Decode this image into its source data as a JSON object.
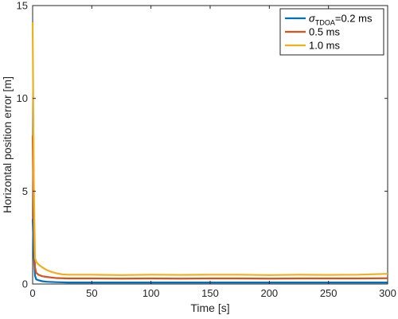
{
  "chart_data": {
    "type": "line",
    "title": "",
    "xlabel": "Time [s]",
    "ylabel": "Horizontal position error [m]",
    "xlim": [
      0,
      300
    ],
    "ylim": [
      0,
      15
    ],
    "x_ticks": [
      0,
      50,
      100,
      150,
      200,
      250,
      300
    ],
    "y_ticks": [
      0,
      5,
      10,
      15
    ],
    "x_tick_labels": [
      "0",
      "50",
      "100",
      "150",
      "200",
      "250",
      "300"
    ],
    "y_tick_labels": [
      "0",
      "5",
      "10",
      "15"
    ],
    "grid": false,
    "legend_position": "top-right",
    "legend": {
      "entries": [
        {
          "symbol": "σ",
          "subscript": "TDOA",
          "text": "=0.2 ms"
        },
        {
          "text": "0.5 ms"
        },
        {
          "text": "1.0 ms"
        }
      ]
    },
    "series": [
      {
        "color": "#0072BD",
        "x": [
          0,
          1,
          2,
          3,
          5,
          8,
          12,
          20,
          30,
          50,
          75,
          100,
          125,
          150,
          175,
          200,
          225,
          250,
          275,
          300
        ],
        "y": [
          3.5,
          1.6,
          0.45,
          0.25,
          0.2,
          0.15,
          0.12,
          0.1,
          0.08,
          0.08,
          0.08,
          0.08,
          0.08,
          0.08,
          0.08,
          0.08,
          0.08,
          0.08,
          0.08,
          0.08
        ]
      },
      {
        "color": "#D95319",
        "x": [
          0,
          1,
          2,
          3,
          5,
          8,
          12,
          20,
          30,
          50,
          75,
          100,
          125,
          150,
          175,
          200,
          225,
          250,
          275,
          300
        ],
        "y": [
          8.0,
          3.0,
          0.9,
          0.6,
          0.5,
          0.42,
          0.38,
          0.32,
          0.3,
          0.3,
          0.29,
          0.3,
          0.29,
          0.3,
          0.3,
          0.29,
          0.3,
          0.3,
          0.3,
          0.31
        ]
      },
      {
        "color": "#EDB120",
        "x": [
          0,
          1,
          2,
          3,
          5,
          8,
          12,
          16,
          20,
          25,
          30,
          50,
          75,
          100,
          125,
          150,
          175,
          200,
          225,
          250,
          275,
          300
        ],
        "y": [
          14.1,
          5.5,
          1.4,
          1.2,
          1.05,
          0.9,
          0.75,
          0.65,
          0.58,
          0.52,
          0.5,
          0.5,
          0.48,
          0.5,
          0.49,
          0.5,
          0.5,
          0.48,
          0.5,
          0.49,
          0.5,
          0.55
        ]
      }
    ]
  }
}
